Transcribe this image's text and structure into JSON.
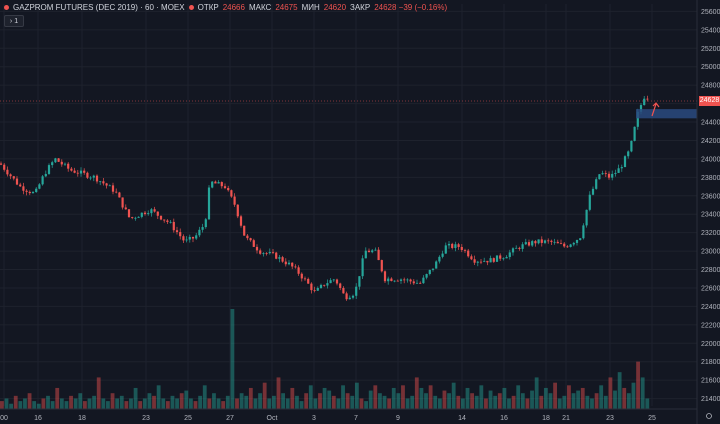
{
  "header": {
    "symbol": "GAZPROM FUTURES (DEC 2019) · 60 · MOEX",
    "open_label": "ОТКР",
    "open_value": "24666",
    "high_label": "МАКС",
    "high_value": "24675",
    "low_label": "МИН",
    "low_value": "24620",
    "close_label": "ЗАКР",
    "close_value": "24628 −39 (−0.16%)"
  },
  "collapse_button_label": "1",
  "colors": {
    "background": "#131722",
    "up": "#26a69a",
    "down": "#ef5350",
    "grid": "#1e222d",
    "zone": "#2a4a7f"
  },
  "chart_data": {
    "type": "candlestick",
    "y_ticks": [
      21400,
      21600,
      21800,
      22000,
      22200,
      22400,
      22600,
      22800,
      23000,
      23200,
      23400,
      23600,
      23800,
      24000,
      24200,
      24400,
      24600,
      24800,
      25000,
      25200,
      25400,
      25600
    ],
    "ylim": [
      21320,
      25680
    ],
    "x_tick_labels": [
      "00",
      "16",
      "18",
      "23",
      "25",
      "27",
      "Oct",
      "3",
      "7",
      "9",
      "14",
      "16",
      "18",
      "21",
      "23",
      "25"
    ],
    "last_price": "24628",
    "path_points": [
      [
        0,
        23950
      ],
      [
        20,
        23700
      ],
      [
        35,
        23620
      ],
      [
        45,
        23850
      ],
      [
        55,
        24000
      ],
      [
        70,
        23880
      ],
      [
        95,
        23800
      ],
      [
        115,
        23650
      ],
      [
        130,
        23350
      ],
      [
        150,
        23450
      ],
      [
        170,
        23300
      ],
      [
        185,
        23100
      ],
      [
        195,
        23150
      ],
      [
        205,
        23300
      ],
      [
        210,
        23750
      ],
      [
        225,
        23700
      ],
      [
        235,
        23500
      ],
      [
        245,
        23150
      ],
      [
        260,
        23000
      ],
      [
        275,
        22950
      ],
      [
        290,
        22850
      ],
      [
        300,
        22750
      ],
      [
        315,
        22550
      ],
      [
        325,
        22650
      ],
      [
        335,
        22700
      ],
      [
        345,
        22500
      ],
      [
        355,
        22550
      ],
      [
        365,
        23000
      ],
      [
        375,
        23000
      ],
      [
        385,
        22700
      ],
      [
        400,
        22700
      ],
      [
        420,
        22650
      ],
      [
        435,
        22850
      ],
      [
        445,
        23050
      ],
      [
        460,
        23050
      ],
      [
        475,
        22900
      ],
      [
        490,
        22900
      ],
      [
        505,
        22950
      ],
      [
        520,
        23050
      ],
      [
        535,
        23100
      ],
      [
        550,
        23100
      ],
      [
        565,
        23050
      ],
      [
        580,
        23150
      ],
      [
        590,
        23600
      ],
      [
        600,
        23850
      ],
      [
        610,
        23800
      ],
      [
        620,
        23900
      ],
      [
        630,
        24100
      ],
      [
        638,
        24500
      ],
      [
        645,
        24700
      ],
      [
        650,
        24640
      ]
    ],
    "support_zone": [
      24440,
      24540
    ],
    "annotation": "up-arrow",
    "volume_bars": [
      3,
      4,
      2,
      5,
      3,
      4,
      6,
      3,
      2,
      4,
      5,
      3,
      8,
      4,
      3,
      5,
      4,
      6,
      3,
      4,
      5,
      12,
      4,
      3,
      6,
      4,
      5,
      3,
      4,
      8,
      3,
      4,
      6,
      5,
      9,
      4,
      3,
      5,
      4,
      6,
      7,
      4,
      3,
      5,
      9,
      4,
      6,
      4,
      3,
      5,
      38,
      4,
      6,
      5,
      8,
      4,
      6,
      10,
      4,
      5,
      12,
      6,
      4,
      8,
      5,
      3,
      6,
      9,
      4,
      6,
      8,
      7,
      5,
      4,
      9,
      6,
      5,
      10,
      4,
      3,
      7,
      9,
      6,
      5,
      4,
      8,
      6,
      9,
      4,
      5,
      12,
      8,
      6,
      9,
      5,
      4,
      7,
      6,
      10,
      5,
      4,
      8,
      6,
      5,
      9,
      4,
      7,
      5,
      6,
      8,
      4,
      5,
      9,
      6,
      4,
      7,
      12,
      5,
      8,
      6,
      10,
      4,
      5,
      9,
      6,
      7,
      8,
      5,
      4,
      6,
      9,
      5,
      12,
      7,
      14,
      8,
      6,
      10,
      18,
      12,
      4
    ]
  }
}
